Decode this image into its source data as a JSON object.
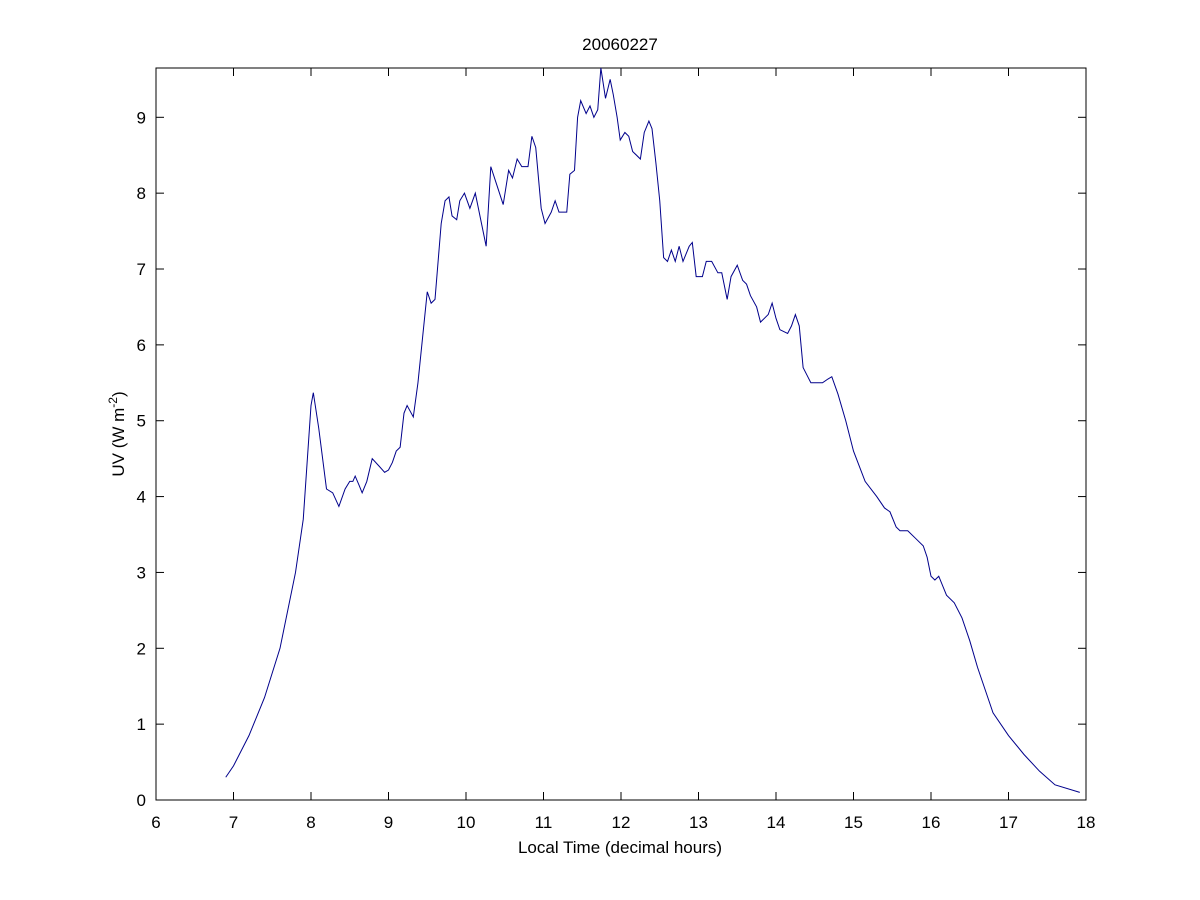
{
  "chart_data": {
    "type": "line",
    "title": "20060227",
    "xlabel": "Local Time (decimal hours)",
    "ylabel": {
      "text": "UV (W m",
      "superscript": "-2",
      "suffix": ")"
    },
    "xlim": [
      6,
      18
    ],
    "xticks": [
      6,
      7,
      8,
      9,
      10,
      11,
      12,
      13,
      14,
      15,
      16,
      17,
      18
    ],
    "ylim": [
      0,
      9.65
    ],
    "yticks": [
      0,
      1,
      2,
      3,
      4,
      5,
      6,
      7,
      8,
      9
    ],
    "series": [
      {
        "name": "UV",
        "color": "#00008b",
        "x": [
          6.9,
          7.0,
          7.2,
          7.4,
          7.6,
          7.8,
          7.9,
          8.0,
          8.03,
          8.1,
          8.2,
          8.28,
          8.36,
          8.44,
          8.5,
          8.54,
          8.57,
          8.62,
          8.66,
          8.72,
          8.79,
          8.88,
          8.95,
          9.0,
          9.05,
          9.1,
          9.15,
          9.2,
          9.24,
          9.32,
          9.38,
          9.44,
          9.5,
          9.55,
          9.6,
          9.68,
          9.73,
          9.78,
          9.82,
          9.88,
          9.92,
          9.98,
          10.05,
          10.12,
          10.2,
          10.26,
          10.32,
          10.4,
          10.48,
          10.55,
          10.6,
          10.66,
          10.72,
          10.8,
          10.85,
          10.9,
          10.97,
          11.02,
          11.1,
          11.15,
          11.2,
          11.3,
          11.34,
          11.4,
          11.44,
          11.48,
          11.55,
          11.6,
          11.65,
          11.7,
          11.74,
          11.8,
          11.86,
          11.9,
          11.95,
          11.99,
          12.05,
          12.1,
          12.15,
          12.25,
          12.3,
          12.36,
          12.4,
          12.45,
          12.5,
          12.55,
          12.6,
          12.65,
          12.7,
          12.75,
          12.8,
          12.88,
          12.92,
          12.97,
          13.05,
          13.1,
          13.17,
          13.25,
          13.3,
          13.37,
          13.42,
          13.5,
          13.57,
          13.62,
          13.67,
          13.75,
          13.8,
          13.9,
          13.95,
          14.0,
          14.05,
          14.15,
          14.2,
          14.25,
          14.3,
          14.35,
          14.4,
          14.45,
          14.55,
          14.6,
          14.67,
          14.72,
          14.8,
          14.9,
          15.0,
          15.15,
          15.3,
          15.4,
          15.47,
          15.55,
          15.6,
          15.7,
          15.8,
          15.9,
          15.95,
          16.0,
          16.05,
          16.1,
          16.2,
          16.3,
          16.4,
          16.5,
          16.6,
          16.7,
          16.75,
          16.8,
          17.0,
          17.2,
          17.4,
          17.6,
          17.92
        ],
        "values": [
          0.3,
          0.45,
          0.85,
          1.35,
          2.0,
          3.0,
          3.7,
          5.2,
          5.37,
          4.9,
          4.1,
          4.05,
          3.87,
          4.1,
          4.2,
          4.2,
          4.27,
          4.15,
          4.05,
          4.2,
          4.5,
          4.4,
          4.32,
          4.35,
          4.45,
          4.6,
          4.65,
          5.1,
          5.2,
          5.05,
          5.5,
          6.1,
          6.7,
          6.55,
          6.6,
          7.6,
          7.9,
          7.95,
          7.7,
          7.65,
          7.9,
          8.0,
          7.8,
          8.0,
          7.6,
          7.3,
          8.35,
          8.1,
          7.85,
          8.3,
          8.2,
          8.45,
          8.35,
          8.35,
          8.75,
          8.6,
          7.8,
          7.6,
          7.75,
          7.9,
          7.75,
          7.75,
          8.25,
          8.3,
          9.0,
          9.22,
          9.05,
          9.15,
          9.0,
          9.1,
          9.65,
          9.25,
          9.5,
          9.3,
          9.0,
          8.7,
          8.8,
          8.75,
          8.55,
          8.45,
          8.8,
          8.95,
          8.85,
          8.4,
          7.9,
          7.15,
          7.1,
          7.25,
          7.1,
          7.3,
          7.1,
          7.3,
          7.35,
          6.9,
          6.9,
          7.1,
          7.1,
          6.95,
          6.95,
          6.6,
          6.9,
          7.05,
          6.85,
          6.8,
          6.65,
          6.5,
          6.3,
          6.4,
          6.55,
          6.35,
          6.2,
          6.15,
          6.25,
          6.4,
          6.25,
          5.7,
          5.6,
          5.5,
          5.5,
          5.5,
          5.55,
          5.58,
          5.35,
          5.0,
          4.6,
          4.2,
          4.0,
          3.85,
          3.8,
          3.6,
          3.55,
          3.55,
          3.45,
          3.35,
          3.2,
          2.95,
          2.9,
          2.95,
          2.7,
          2.6,
          2.4,
          2.1,
          1.75,
          1.45,
          1.3,
          1.15,
          0.85,
          0.6,
          0.38,
          0.2,
          0.1
        ]
      }
    ]
  }
}
